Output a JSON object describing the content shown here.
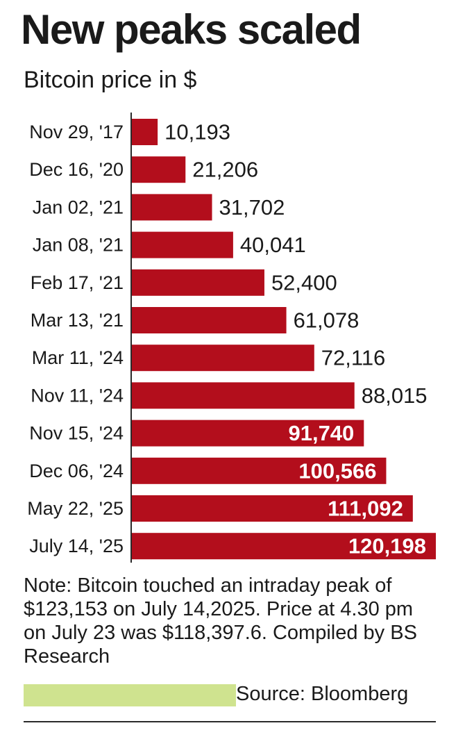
{
  "title": "New peaks scaled",
  "subtitle": "Bitcoin price in $",
  "colors": {
    "bar": "#b30e1c",
    "text": "#1a1a1a",
    "inside_label": "#ffffff",
    "highlight": "#cfe38f"
  },
  "chart_data": {
    "type": "bar",
    "orientation": "horizontal",
    "title": "New peaks scaled",
    "subtitle": "Bitcoin price in $",
    "categories": [
      "Nov 29, '17",
      "Dec 16, '20",
      "Jan 02, '21",
      "Jan 08, '21",
      "Feb 17, '21",
      "Mar 13, '21",
      "Mar 11, '24",
      "Nov 11, '24",
      "Nov 15, '24",
      "Dec 06, '24",
      "May 22, '25",
      "July 14, '25"
    ],
    "values": [
      10193,
      21206,
      31702,
      40041,
      52400,
      61078,
      72116,
      88015,
      91740,
      100566,
      111092,
      120198
    ],
    "labels": [
      "10,193",
      "21,206",
      "31,702",
      "40,041",
      "52,400",
      "61,078",
      "72,116",
      "88,015",
      "91,740",
      "100,566",
      "111,092",
      "120,198"
    ],
    "label_inside_bar": [
      false,
      false,
      false,
      false,
      false,
      false,
      false,
      false,
      true,
      true,
      true,
      true
    ],
    "xlim": [
      0,
      120198
    ],
    "grid": false,
    "legend": "none"
  },
  "note": "Note: Bitcoin touched an intraday peak of $123,153 on July 14,2025. Price at 4.30 pm on July 23 was $118,397.6. Compiled by BS Research",
  "source": "Source: Bloomberg"
}
